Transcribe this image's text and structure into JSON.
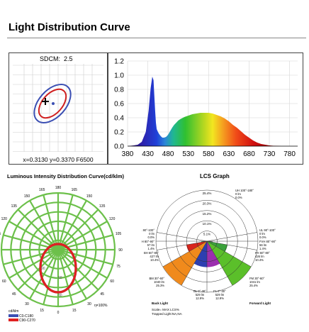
{
  "header": {
    "title": "Light Distribution Curve"
  },
  "chromaticity": {
    "sdcm_label": "SDCM:",
    "sdcm_value": "2.5",
    "coords_text": "x=0.3130 y=0.3370 F6500"
  },
  "chart_data": [
    {
      "type": "area",
      "title": "",
      "xlabel": "",
      "ylabel": "",
      "xlim": [
        380,
        800
      ],
      "ylim": [
        0,
        1.2
      ],
      "x_ticks": [
        "380",
        "430",
        "480",
        "530",
        "580",
        "630",
        "680",
        "730",
        "780"
      ],
      "y_ticks": [
        "0.0",
        "0.2",
        "0.4",
        "0.6",
        "0.8",
        "1.0",
        "1.2"
      ],
      "grid": true,
      "x": [
        380,
        395,
        405,
        415,
        425,
        432,
        437,
        441,
        444,
        446,
        448,
        450,
        452,
        455,
        458,
        462,
        466,
        470,
        475,
        480,
        485,
        490,
        495,
        500,
        505,
        510,
        520,
        530,
        540,
        550,
        560,
        570,
        580,
        590,
        600,
        610,
        620,
        630,
        640,
        650,
        660,
        670,
        680,
        690,
        700,
        710,
        720,
        730,
        740,
        750,
        760,
        780,
        800
      ],
      "values": [
        0,
        0.01,
        0.02,
        0.06,
        0.2,
        0.5,
        0.82,
        0.98,
        0.93,
        0.72,
        0.5,
        0.33,
        0.24,
        0.2,
        0.17,
        0.14,
        0.12,
        0.12,
        0.13,
        0.16,
        0.21,
        0.26,
        0.3,
        0.33,
        0.36,
        0.38,
        0.41,
        0.43,
        0.45,
        0.46,
        0.47,
        0.47,
        0.47,
        0.46,
        0.44,
        0.42,
        0.39,
        0.35,
        0.3,
        0.26,
        0.21,
        0.16,
        0.12,
        0.08,
        0.05,
        0.03,
        0.02,
        0.01,
        0.005,
        0.002,
        0,
        0,
        0
      ]
    },
    {
      "type": "polar",
      "title": "Luminous Intensity Distribution Curve(cd/klm)",
      "angle_labels": [
        "180",
        "165",
        "150",
        "135",
        "120",
        "105",
        "90",
        "75",
        "60",
        "45",
        "30",
        "15",
        "0",
        "15",
        "30",
        "45",
        "60",
        "75",
        "90",
        "105",
        "120",
        "135",
        "150",
        "165"
      ],
      "radial_labels": [
        "90",
        "60",
        "30"
      ],
      "unit_label": "cd/klm",
      "eta_label": "η=100%",
      "legend": [
        {
          "name": "C0-C180",
          "color": "#3b4fb3"
        },
        {
          "name": "C90-C270",
          "color": "#e02020"
        }
      ]
    },
    {
      "type": "polar-zones",
      "title": "LCS Graph",
      "ring_labels": [
        "25.4%",
        "20.3%",
        "15.2%",
        "10.1%",
        "5.1%"
      ],
      "zones": [
        {
          "key": "uh",
          "label": "UH 100°-180°",
          "v1": "0 lm",
          "v2": "0.0%"
        },
        {
          "key": "ul_l",
          "label": "UL 90°-100°",
          "v1": "0 lm",
          "v2": "0.0%"
        },
        {
          "key": "ul_r",
          "label": "UL 90°-100°",
          "v1": "0 lm",
          "v2": "0.0%"
        },
        {
          "key": "bvh",
          "label": "BVH 80°-90°",
          "v1": "57 lm",
          "v2": "1.4%"
        },
        {
          "key": "fvh",
          "label": "FVH 80°-90°",
          "v1": "56 lm",
          "v2": "1.4%"
        },
        {
          "key": "bh",
          "label": "BH 60°-80°",
          "v1": "427 lm",
          "v2": "10.4%"
        },
        {
          "key": "fh",
          "label": "FH 60°-80°",
          "v1": "426 lm",
          "v2": "10.4%"
        },
        {
          "key": "bm",
          "label": "BM 30°-60°",
          "v1": "1040 lm",
          "v2": "25.3%"
        },
        {
          "key": "fm",
          "label": "FM 30°-60°",
          "v1": "1041 lm",
          "v2": "25.4%"
        },
        {
          "key": "bl",
          "label": "BL 0°-30°",
          "v1": "529 lm",
          "v2": "12.9%"
        },
        {
          "key": "fl",
          "label": "FL 0°-30°",
          "v1": "529 lm",
          "v2": "12.9%"
        }
      ],
      "back_label": "Back Light",
      "forward_label": "Forward Light",
      "note1": "Scale= MAX LCS%",
      "note2": "Trapped Light:NA,NA"
    }
  ]
}
